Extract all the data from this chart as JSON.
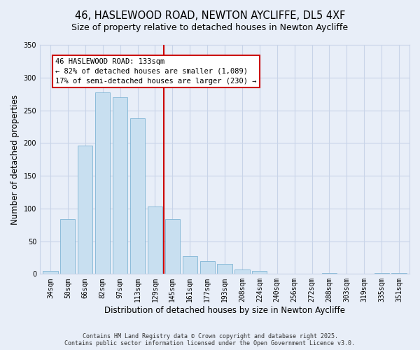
{
  "title": "46, HASLEWOOD ROAD, NEWTON AYCLIFFE, DL5 4XF",
  "subtitle": "Size of property relative to detached houses in Newton Aycliffe",
  "xlabel": "Distribution of detached houses by size in Newton Aycliffe",
  "ylabel": "Number of detached properties",
  "bar_labels": [
    "34sqm",
    "50sqm",
    "66sqm",
    "82sqm",
    "97sqm",
    "113sqm",
    "129sqm",
    "145sqm",
    "161sqm",
    "177sqm",
    "193sqm",
    "208sqm",
    "224sqm",
    "240sqm",
    "256sqm",
    "272sqm",
    "288sqm",
    "303sqm",
    "319sqm",
    "335sqm",
    "351sqm"
  ],
  "bar_values": [
    5,
    84,
    196,
    277,
    270,
    238,
    103,
    84,
    27,
    20,
    15,
    7,
    5,
    0,
    0,
    0,
    1,
    0,
    0,
    1,
    1
  ],
  "bar_color": "#c8dff0",
  "bar_edge_color": "#7fb4d4",
  "marker_line_color": "#cc0000",
  "annotation_line1": "46 HASLEWOOD ROAD: 133sqm",
  "annotation_line2": "← 82% of detached houses are smaller (1,089)",
  "annotation_line3": "17% of semi-detached houses are larger (230) →",
  "annotation_box_color": "#ffffff",
  "annotation_box_edge_color": "#cc0000",
  "ylim": [
    0,
    350
  ],
  "yticks": [
    0,
    50,
    100,
    150,
    200,
    250,
    300,
    350
  ],
  "footer_line1": "Contains HM Land Registry data © Crown copyright and database right 2025.",
  "footer_line2": "Contains public sector information licensed under the Open Government Licence v3.0.",
  "background_color": "#e8eef8",
  "grid_color": "#c8d4e8",
  "title_fontsize": 10.5,
  "subtitle_fontsize": 9,
  "axis_label_fontsize": 8.5,
  "tick_fontsize": 7,
  "annotation_fontsize": 7.5,
  "footer_fontsize": 6
}
